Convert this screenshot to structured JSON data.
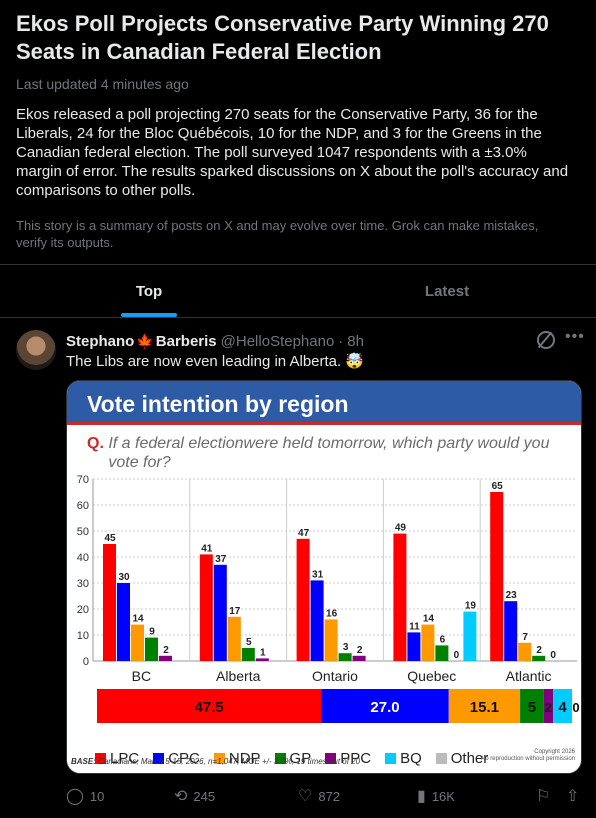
{
  "story": {
    "title": "Ekos Poll Projects Conservative Party Winning 270 Seats in Canadian Federal Election",
    "updated": "Last updated 4 minutes ago",
    "summary": "Ekos released a poll projecting 270 seats for the Conservative Party, 36 for the Liberals, 24 for the Bloc Québécois, 10 for the NDP, and 3 for the Greens in the Canadian federal election. The poll surveyed 1047 respondents with a ±3.0% margin of error. The results sparked discussions on X about the poll's accuracy and comparisons to other polls.",
    "disclaimer": "This story is a summary of posts on X and may evolve over time. Grok can make mistakes, verify its outputs."
  },
  "tabs": [
    {
      "label": "Top",
      "active": true
    },
    {
      "label": "Latest",
      "active": false
    }
  ],
  "post": {
    "author_first": "Stephano",
    "author_flag": "🍁",
    "author_last": "Barberis",
    "handle": "@HelloStephano",
    "time": "8h",
    "text": "The Libs are now even leading in Alberta. 🤯",
    "icons": {
      "grok": "grok-icon",
      "more": "more-icon"
    },
    "actions": {
      "replies": "10",
      "reposts": "245",
      "likes": "872",
      "views": "16K"
    }
  },
  "chart_data": {
    "type": "bar",
    "title": "Vote intention by region",
    "question_prefix": "Q.",
    "question": "If a federal electionwere held tomorrow, which party would you vote for?",
    "categories": [
      "BC",
      "Alberta",
      "Ontario",
      "Quebec",
      "Atlantic"
    ],
    "ylim": [
      0,
      70
    ],
    "yticks": [
      0,
      10,
      20,
      30,
      40,
      50,
      60,
      70
    ],
    "grid": true,
    "series": [
      {
        "name": "LPC",
        "color": "#ff0000",
        "values": [
          45,
          41,
          47,
          49,
          65
        ]
      },
      {
        "name": "CPC",
        "color": "#0000ff",
        "values": [
          30,
          37,
          31,
          11,
          23
        ]
      },
      {
        "name": "NDP",
        "color": "#ff9900",
        "values": [
          14,
          17,
          16,
          14,
          7
        ]
      },
      {
        "name": "GP",
        "color": "#008000",
        "values": [
          9,
          5,
          3,
          6,
          2
        ]
      },
      {
        "name": "PPC",
        "color": "#800080",
        "values": [
          2,
          1,
          2,
          0,
          0
        ]
      },
      {
        "name": "BQ",
        "color": "#00ccff",
        "values": [
          null,
          null,
          null,
          19,
          null
        ]
      }
    ],
    "national_bar": {
      "segments": [
        {
          "label": "47.5",
          "value": 47.5,
          "color": "#ff0000"
        },
        {
          "label": "27.0",
          "value": 27.0,
          "color": "#0000ff"
        },
        {
          "label": "15.1",
          "value": 15.1,
          "color": "#ff9900"
        },
        {
          "label": "5",
          "value": 5,
          "color": "#008000"
        },
        {
          "label": "2",
          "value": 2,
          "color": "#800080"
        },
        {
          "label": "4",
          "value": 4,
          "color": "#00ccff"
        },
        {
          "label": "0",
          "value": 0,
          "color": "#bbbbbb"
        }
      ]
    },
    "legend": [
      {
        "name": "LPC",
        "color": "#ff0000"
      },
      {
        "name": "CPC",
        "color": "#0000ff"
      },
      {
        "name": "NDP",
        "color": "#ff9900"
      },
      {
        "name": "GP",
        "color": "#008000"
      },
      {
        "name": "PPC",
        "color": "#800080"
      },
      {
        "name": "BQ",
        "color": "#00ccff"
      },
      {
        "name": "Other",
        "color": "#bbbbbb"
      }
    ],
    "base_label": "BASE:",
    "base_note": "Canadians; March 5-15, 2026, n=1,047, MOE +/- 3.0%, 19 times out of 20",
    "copyright": "Copyright 2026",
    "copyright_sub": "No reproduction without permission"
  }
}
